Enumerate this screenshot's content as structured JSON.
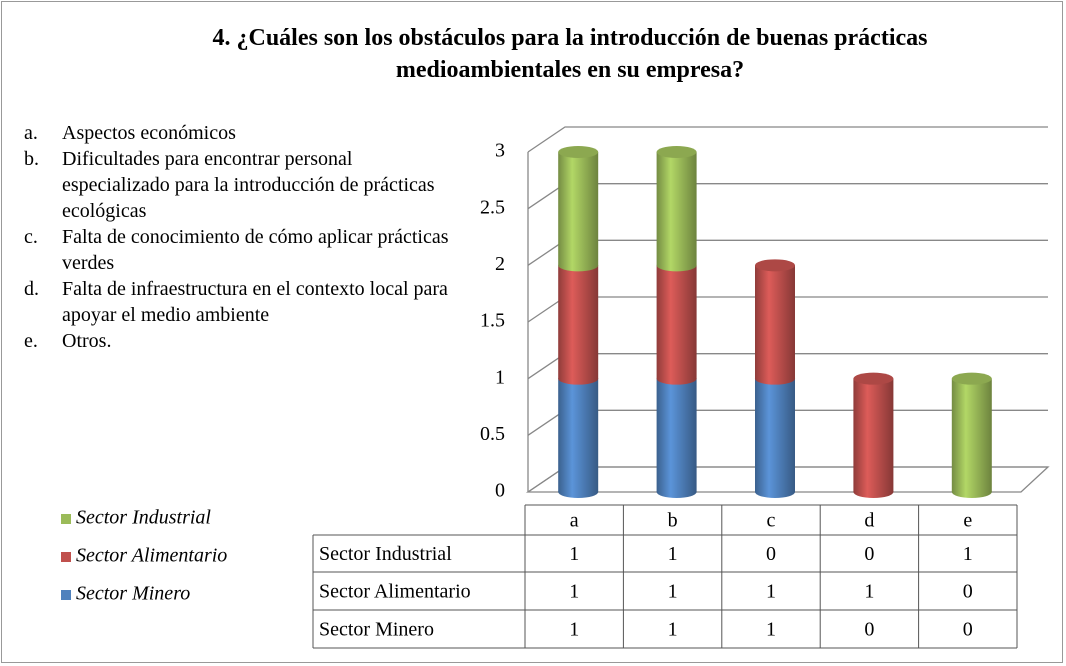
{
  "chart_data": {
    "type": "bar",
    "stacked": true,
    "three_d": true,
    "title": "4. ¿Cuáles son los obstáculos para la introducción de buenas prácticas medioambientales en su empresa?",
    "category_descriptions": [
      {
        "marker": "a.",
        "text": "Aspectos económicos"
      },
      {
        "marker": "b.",
        "text": "Dificultades para encontrar personal especializado para la introducción de prácticas ecológicas"
      },
      {
        "marker": "c.",
        "text": "Falta de conocimiento de cómo aplicar prácticas verdes"
      },
      {
        "marker": "d.",
        "text": "Falta de infraestructura en el contexto local para apoyar el medio ambiente"
      },
      {
        "marker": "e.",
        "text": "Otros."
      }
    ],
    "categories": [
      "a",
      "b",
      "c",
      "d",
      "e"
    ],
    "series": [
      {
        "name": "Sector Industrial",
        "color": "#9bbb59",
        "values": [
          1,
          1,
          0,
          0,
          1
        ]
      },
      {
        "name": "Sector Alimentario",
        "color": "#c0504d",
        "values": [
          1,
          1,
          1,
          1,
          0
        ]
      },
      {
        "name": "Sector Minero",
        "color": "#4f81bd",
        "values": [
          1,
          1,
          1,
          0,
          0
        ]
      }
    ],
    "ylim": [
      0,
      3
    ],
    "yticks": [
      0,
      0.5,
      1,
      1.5,
      2,
      2.5,
      3
    ],
    "grid": true,
    "legend": "left",
    "data_table": true
  }
}
